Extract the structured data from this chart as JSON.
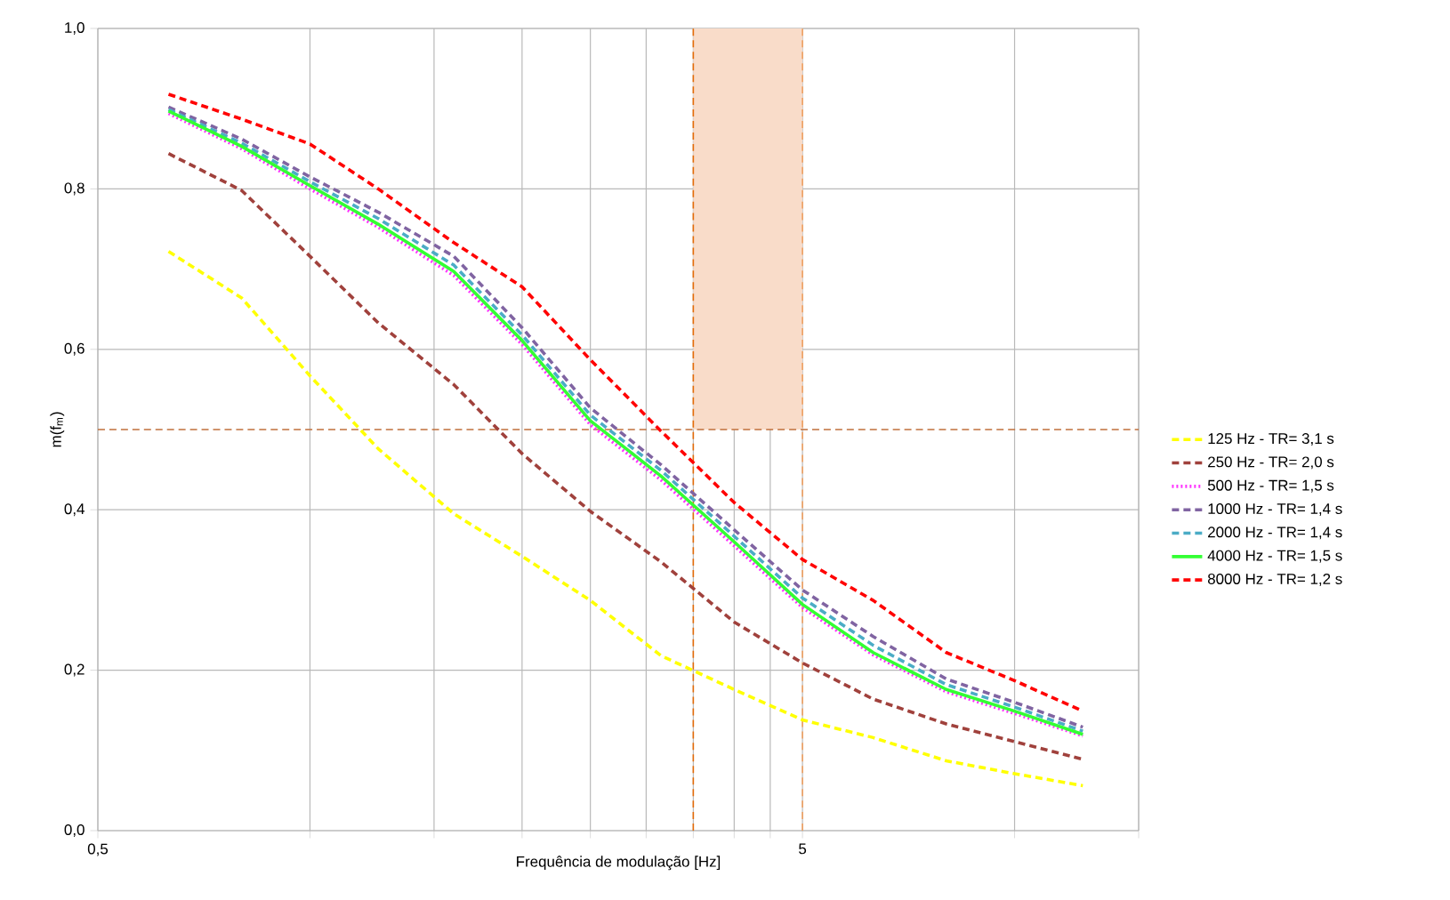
{
  "chart_data": {
    "type": "line",
    "xlabel": "Frequência de modulação [Hz]",
    "ylabel": "m(f$_{m}$)",
    "x": [
      0.63,
      0.8,
      1,
      1.25,
      1.6,
      2,
      2.5,
      3.15,
      4,
      5,
      6.3,
      8,
      10,
      12.5
    ],
    "series": [
      {
        "name": "125 Hz - TR= 3,1 s",
        "color": "#ffff00",
        "line_style": "dashed",
        "values": [
          0.722,
          0.664,
          0.567,
          0.476,
          0.395,
          0.342,
          0.287,
          0.218,
          0.176,
          0.138,
          0.116,
          0.087,
          0.071,
          0.056
        ]
      },
      {
        "name": "250 Hz - TR= 2,0 s",
        "color": "#a0413c",
        "line_style": "dashed",
        "values": [
          0.844,
          0.798,
          0.716,
          0.633,
          0.556,
          0.47,
          0.398,
          0.335,
          0.26,
          0.209,
          0.164,
          0.133,
          0.111,
          0.089
        ]
      },
      {
        "name": "500 Hz - TR= 1,5 s",
        "color": "#ff33ff",
        "line_style": "dotted",
        "values": [
          0.894,
          0.85,
          0.8,
          0.752,
          0.692,
          0.606,
          0.506,
          0.437,
          0.355,
          0.278,
          0.219,
          0.173,
          0.146,
          0.118
        ]
      },
      {
        "name": "1000 Hz - TR= 1,4 s",
        "color": "#8064a2",
        "line_style": "dashed",
        "values": [
          0.902,
          0.862,
          0.815,
          0.771,
          0.716,
          0.627,
          0.527,
          0.456,
          0.375,
          0.3,
          0.242,
          0.189,
          0.16,
          0.129
        ]
      },
      {
        "name": "2000 Hz - TR= 1,4 s",
        "color": "#4bacc6",
        "line_style": "dashed",
        "values": [
          0.899,
          0.857,
          0.809,
          0.763,
          0.705,
          0.618,
          0.518,
          0.449,
          0.367,
          0.29,
          0.231,
          0.182,
          0.154,
          0.124
        ]
      },
      {
        "name": "4000 Hz - TR= 1,5 s",
        "color": "#33ff33",
        "line_style": "solid",
        "values": [
          0.897,
          0.853,
          0.804,
          0.756,
          0.697,
          0.611,
          0.511,
          0.442,
          0.36,
          0.282,
          0.222,
          0.176,
          0.149,
          0.12
        ]
      },
      {
        "name": "8000 Hz - TR= 1,2 s",
        "color": "#ff0000",
        "line_style": "dashed",
        "values": [
          0.918,
          0.887,
          0.856,
          0.8,
          0.733,
          0.678,
          0.587,
          0.498,
          0.409,
          0.338,
          0.287,
          0.222,
          0.187,
          0.149
        ]
      }
    ],
    "log": "x",
    "xlim": [
      0.5,
      15
    ],
    "ylim": [
      0,
      1
    ],
    "xticks": [
      {
        "value": 0.5,
        "label": "0,5"
      },
      {
        "value": 1,
        "label": null
      },
      {
        "value": 1.5,
        "label": null
      },
      {
        "value": 2,
        "label": null
      },
      {
        "value": 2.5,
        "label": null
      },
      {
        "value": 3,
        "label": null
      },
      {
        "value": 3.5,
        "label": null
      },
      {
        "value": 4,
        "label": null
      },
      {
        "value": 4.5,
        "label": null
      },
      {
        "value": 5,
        "label": "5"
      },
      {
        "value": 10,
        "label": null
      },
      {
        "value": 15,
        "label": null
      }
    ],
    "yticks": [
      {
        "value": 0,
        "label": "0,0"
      },
      {
        "value": 0.2,
        "label": "0,2"
      },
      {
        "value": 0.4,
        "label": "0,4"
      },
      {
        "value": 0.6,
        "label": "0,6"
      },
      {
        "value": 0.8,
        "label": "0,8"
      },
      {
        "value": 1,
        "label": "1,0"
      }
    ],
    "grid": true,
    "legend": "right",
    "ref_lines": [
      {
        "axis": "y",
        "value": 0.5,
        "color": "#c0703c",
        "line_style": "dashed"
      },
      {
        "axis": "x",
        "value": 3.5,
        "color": "#e46c0a",
        "line_style": "dashed"
      },
      {
        "axis": "x",
        "value": 5,
        "color": "#f0a060",
        "line_style": "dashed"
      }
    ],
    "bands": [
      {
        "axis": "x",
        "from": 3.5,
        "to": 5,
        "color": "#f9dcc9"
      }
    ]
  }
}
